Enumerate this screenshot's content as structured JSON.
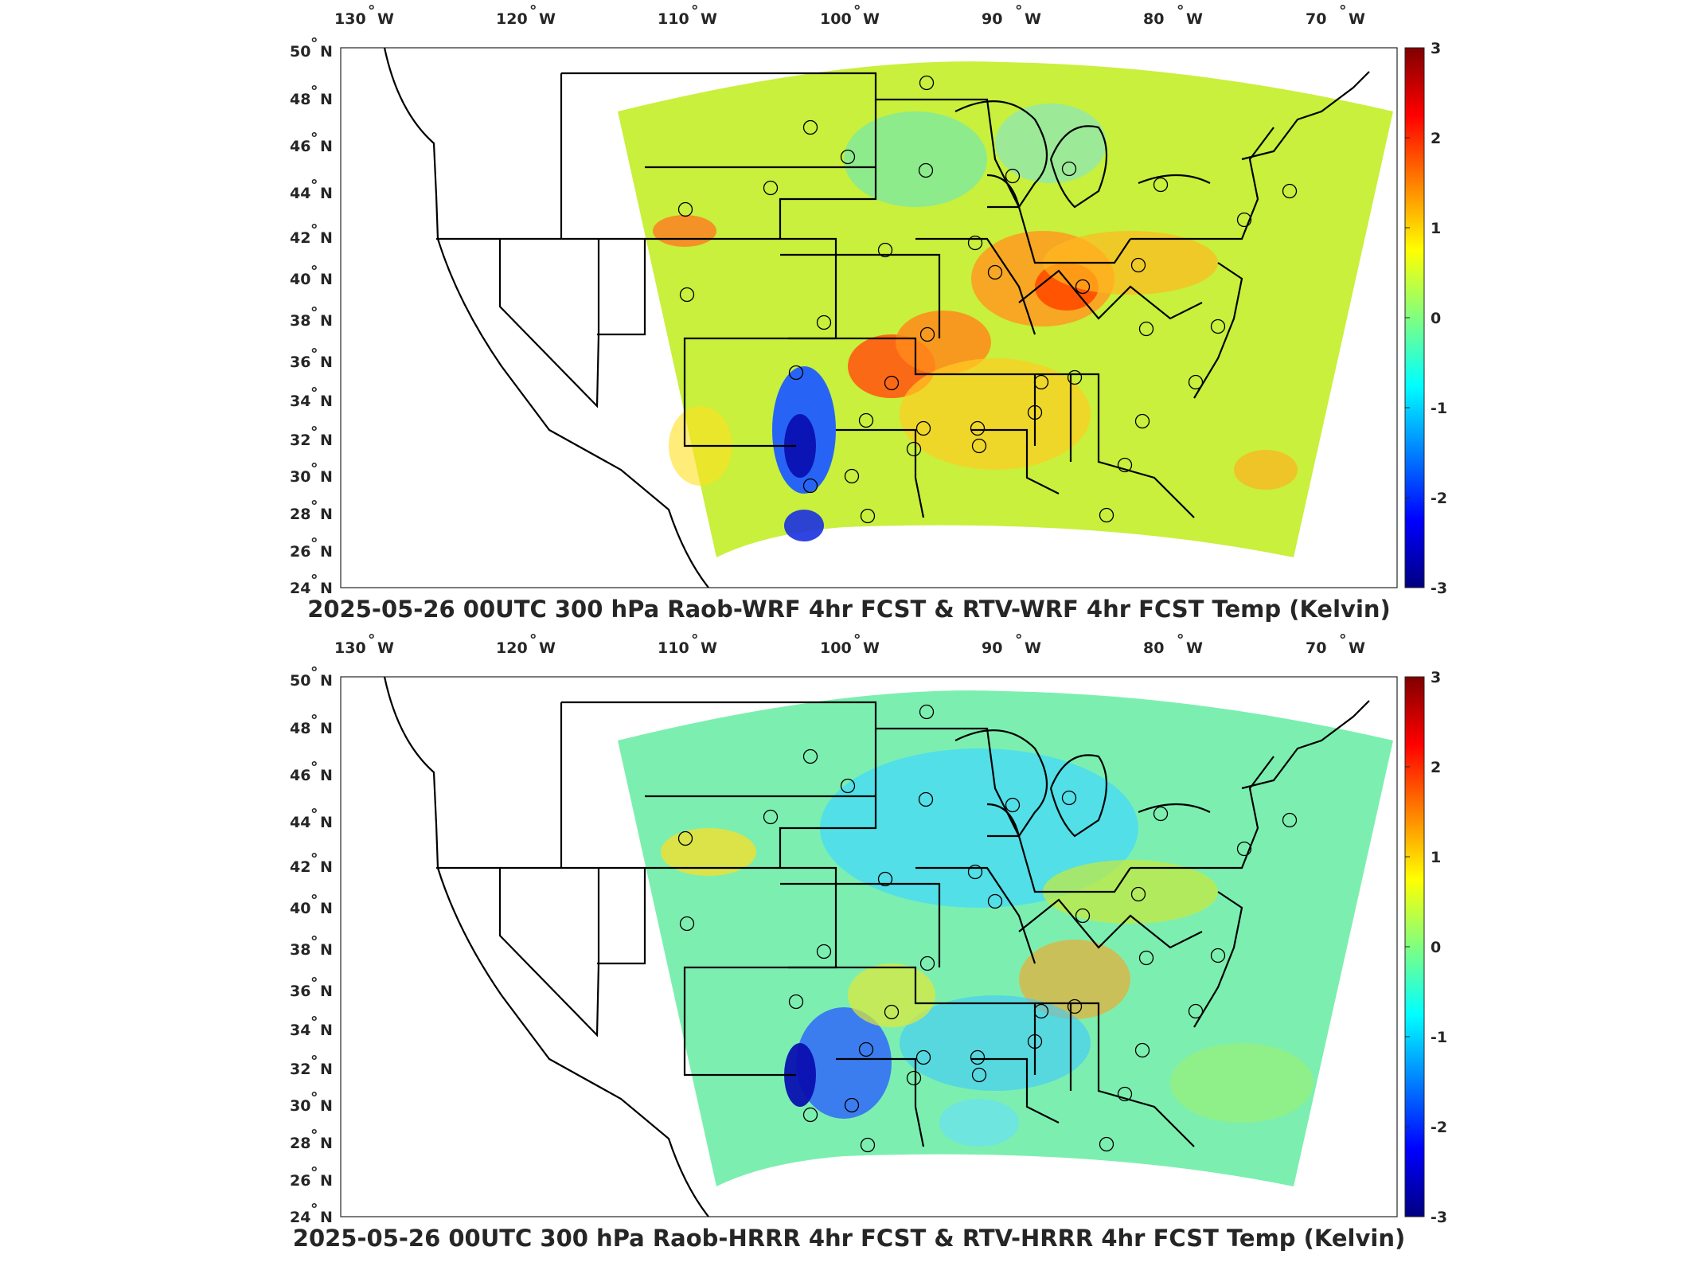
{
  "panels": [
    {
      "title": "2025-05-26 00UTC 300 hPa Raob-WRF 4hr FCST & RTV-WRF 4hr FCST Temp (Kelvin)",
      "field_tone": "warm"
    },
    {
      "title": "2025-05-26 00UTC 300 hPa Raob-HRRR 4hr FCST & RTV-HRRR 4hr FCST Temp (Kelvin)",
      "field_tone": "cool"
    }
  ],
  "lon_labels": [
    "130",
    "120",
    "110",
    "100",
    "90",
    "80",
    "70"
  ],
  "lon_hemisphere": "W",
  "lat_labels": [
    "50",
    "48",
    "46",
    "44",
    "42",
    "40",
    "38",
    "36",
    "34",
    "32",
    "30",
    "28",
    "26",
    "24"
  ],
  "lat_hemisphere": "N",
  "colorbar": {
    "ticks": [
      "3",
      "2",
      "1",
      "0",
      "-1",
      "-2",
      "-3"
    ],
    "colors": [
      "#800000",
      "#ff0000",
      "#ff8000",
      "#ffff00",
      "#80ff80",
      "#00ffff",
      "#0080ff",
      "#0000ff",
      "#000080"
    ],
    "colormap": "jet"
  },
  "colors": {
    "raob_marker_edge": "#000000",
    "state_lines": "#000000"
  }
}
